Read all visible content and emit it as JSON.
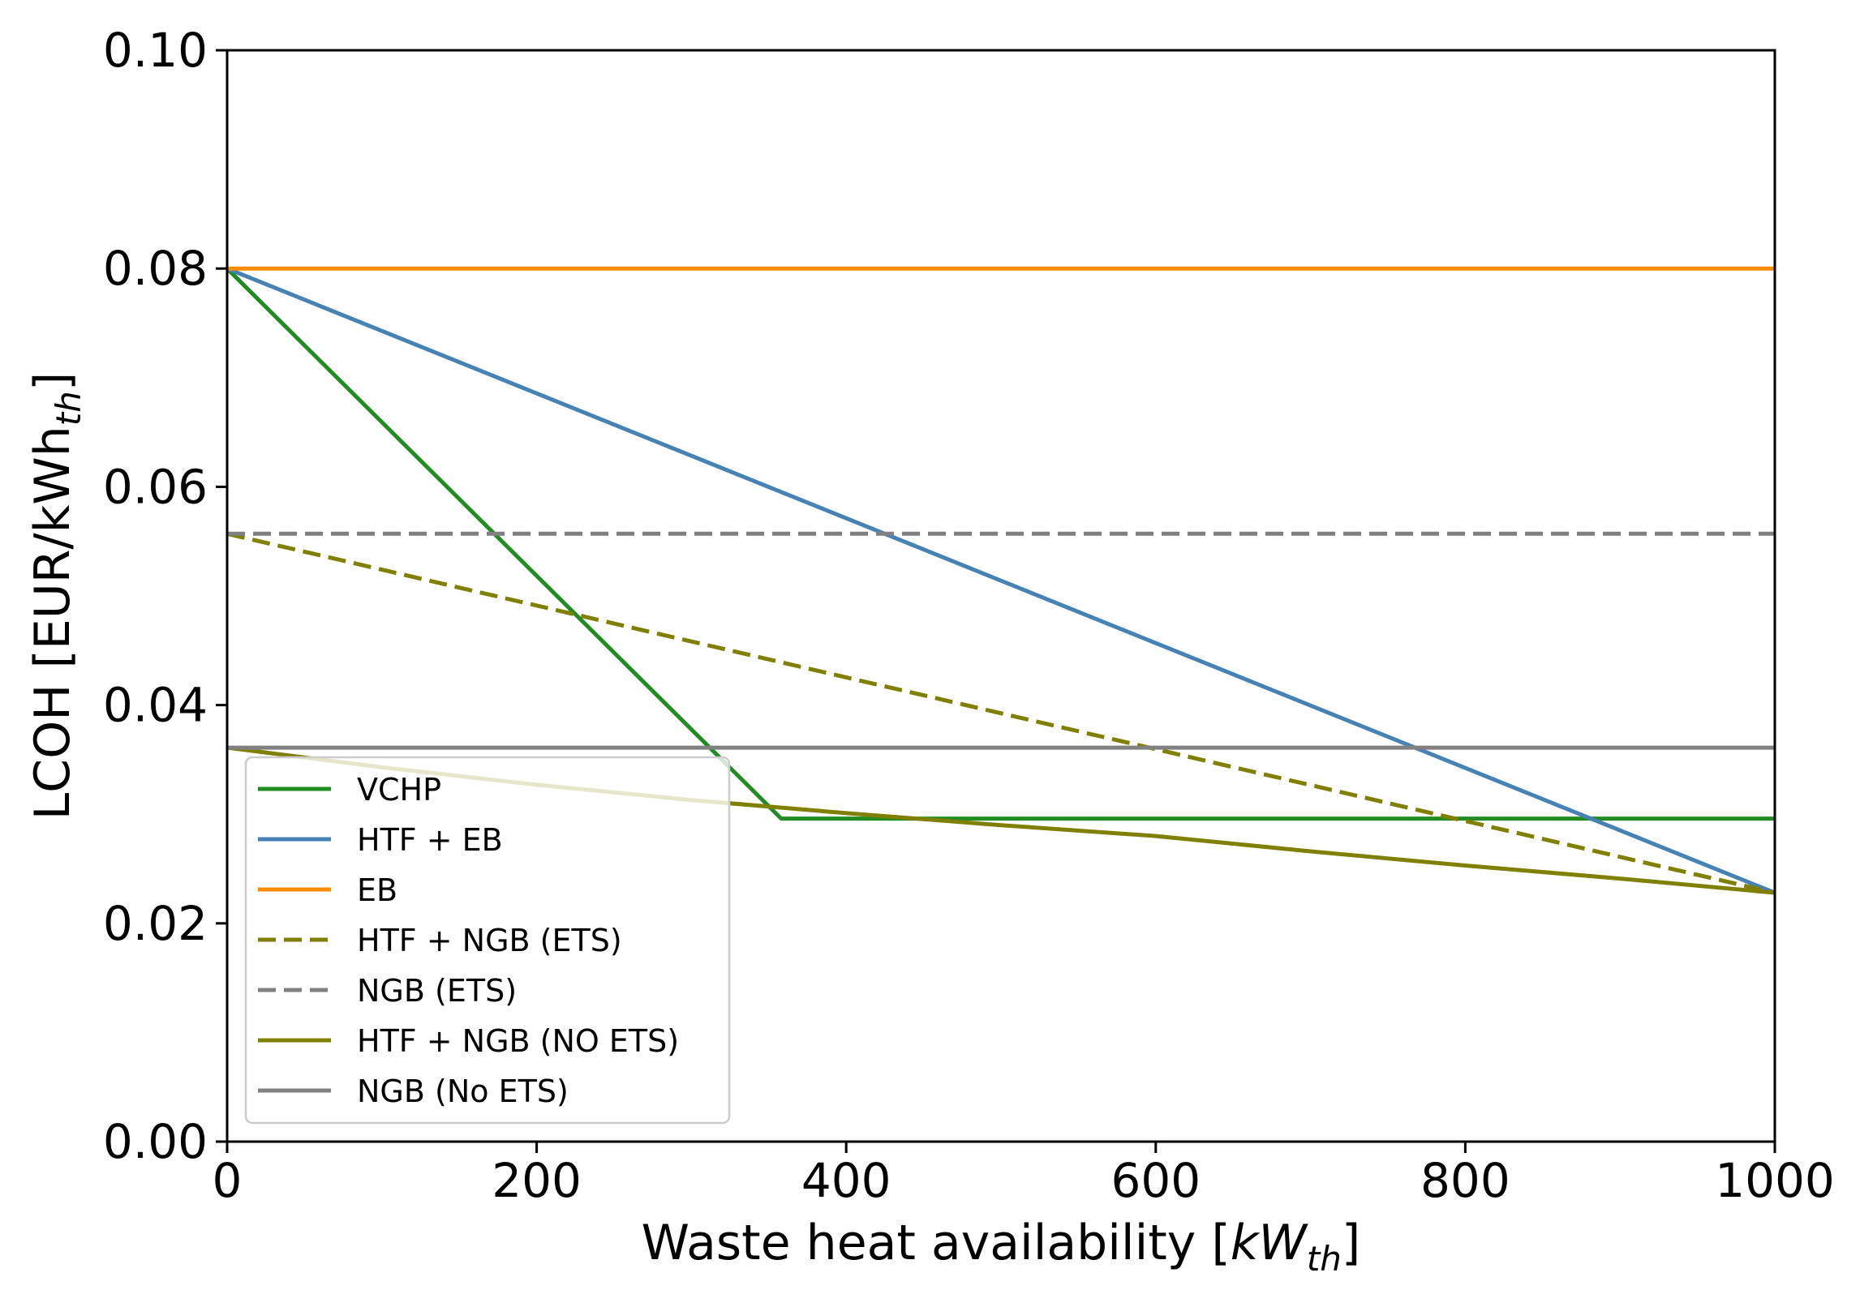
{
  "chart_data": {
    "type": "line",
    "title": "",
    "xlabel": "Waste heat availability [kW_th]",
    "xlabel_parts": {
      "prefix": "Waste heat availability [",
      "var": "kW",
      "sub": "th",
      "suffix": "]"
    },
    "ylabel": "LCOH [EUR/kWh_th]",
    "ylabel_parts": {
      "prefix": "LCOH [EUR/kWh",
      "sub": "th",
      "suffix": "]"
    },
    "xlim": [
      0,
      1000
    ],
    "ylim": [
      0,
      0.1
    ],
    "xticks": [
      0,
      200,
      400,
      600,
      800,
      1000
    ],
    "xtick_labels": [
      "0",
      "200",
      "400",
      "600",
      "800",
      "1000"
    ],
    "yticks": [
      0,
      0.02,
      0.04,
      0.06,
      0.08,
      0.1
    ],
    "ytick_labels": [
      "0.00",
      "0.02",
      "0.04",
      "0.06",
      "0.08",
      "0.10"
    ],
    "grid": false,
    "legend_position": "lower-left",
    "series": [
      {
        "name": "VCHP",
        "color": "#228b22",
        "dash": "solid",
        "x": [
          0,
          358,
          1000
        ],
        "y": [
          0.08,
          0.0296,
          0.0296
        ]
      },
      {
        "name": "HTF + EB",
        "color": "#4682b4",
        "dash": "solid",
        "x": [
          0,
          1000
        ],
        "y": [
          0.08,
          0.0228
        ]
      },
      {
        "name": "EB",
        "color": "#ff8c00",
        "dash": "solid",
        "x": [
          0,
          1000
        ],
        "y": [
          0.08,
          0.08
        ]
      },
      {
        "name": "HTF + NGB (ETS)",
        "color": "#808000",
        "dash": "dashed",
        "x": [
          0,
          1000
        ],
        "y": [
          0.0557,
          0.0228
        ]
      },
      {
        "name": "NGB (ETS)",
        "color": "#808080",
        "dash": "dashed",
        "x": [
          0,
          1000
        ],
        "y": [
          0.0557,
          0.0557
        ]
      },
      {
        "name": "HTF + NGB (NO ETS)",
        "color": "#808000",
        "dash": "solid",
        "x": [
          0,
          100,
          200,
          300,
          400,
          500,
          600,
          700,
          800,
          900,
          1000
        ],
        "y": [
          0.0361,
          0.0343,
          0.0327,
          0.0313,
          0.0301,
          0.029,
          0.028,
          0.0266,
          0.0253,
          0.0241,
          0.0228
        ]
      },
      {
        "name": "NGB (No ETS)",
        "color": "#808080",
        "dash": "solid",
        "x": [
          0,
          1000
        ],
        "y": [
          0.0361,
          0.0361
        ]
      }
    ]
  }
}
